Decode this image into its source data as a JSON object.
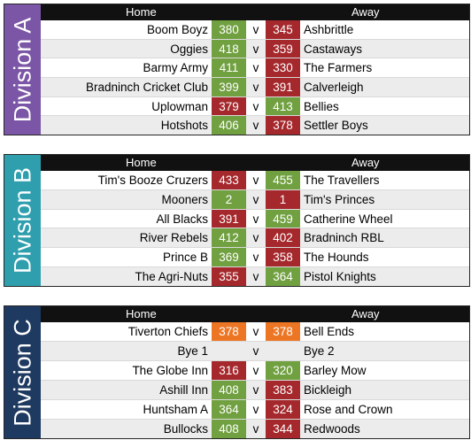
{
  "divisions": [
    {
      "label": "Division A",
      "header_home": "Home",
      "header_away": "Away",
      "accent": "#7c56a6",
      "matches": [
        {
          "home": "Boom Boyz",
          "home_score": "380",
          "vs": "v",
          "away_score": "345",
          "away": "Ashbrittle",
          "home_result": "win",
          "away_result": "lose"
        },
        {
          "home": "Oggies",
          "home_score": "418",
          "vs": "v",
          "away_score": "359",
          "away": "Castaways",
          "home_result": "win",
          "away_result": "lose"
        },
        {
          "home": "Barmy Army",
          "home_score": "411",
          "vs": "v",
          "away_score": "330",
          "away": "The Farmers",
          "home_result": "win",
          "away_result": "lose"
        },
        {
          "home": "Bradninch Cricket Club",
          "home_score": "399",
          "vs": "v",
          "away_score": "391",
          "away": "Calverleigh",
          "home_result": "win",
          "away_result": "lose"
        },
        {
          "home": "Uplowman",
          "home_score": "379",
          "vs": "v",
          "away_score": "413",
          "away": "Bellies",
          "home_result": "lose",
          "away_result": "win"
        },
        {
          "home": "Hotshots",
          "home_score": "406",
          "vs": "v",
          "away_score": "378",
          "away": "Settler Boys",
          "home_result": "win",
          "away_result": "lose"
        }
      ]
    },
    {
      "label": "Division B",
      "header_home": "Home",
      "header_away": "Away",
      "accent": "#2f9fae",
      "matches": [
        {
          "home": "Tim's Booze Cruzers",
          "home_score": "433",
          "vs": "v",
          "away_score": "455",
          "away": "The Travellers",
          "home_result": "lose",
          "away_result": "win"
        },
        {
          "home": "Mooners",
          "home_score": "2",
          "vs": "v",
          "away_score": "1",
          "away": "Tim's Princes",
          "home_result": "win",
          "away_result": "lose"
        },
        {
          "home": "All Blacks",
          "home_score": "391",
          "vs": "v",
          "away_score": "459",
          "away": "Catherine Wheel",
          "home_result": "lose",
          "away_result": "win"
        },
        {
          "home": "River Rebels",
          "home_score": "412",
          "vs": "v",
          "away_score": "402",
          "away": "Bradninch RBL",
          "home_result": "win",
          "away_result": "lose"
        },
        {
          "home": "Prince B",
          "home_score": "369",
          "vs": "v",
          "away_score": "358",
          "away": "The Hounds",
          "home_result": "win",
          "away_result": "lose"
        },
        {
          "home": "The Agri-Nuts",
          "home_score": "355",
          "vs": "v",
          "away_score": "364",
          "away": "Pistol Knights",
          "home_result": "lose",
          "away_result": "win"
        }
      ]
    },
    {
      "label": "Division C",
      "header_home": "Home",
      "header_away": "Away",
      "accent": "#1f3a60",
      "matches": [
        {
          "home": "Tiverton Chiefs",
          "home_score": "378",
          "vs": "v",
          "away_score": "378",
          "away": "Bell Ends",
          "home_result": "draw",
          "away_result": "draw"
        },
        {
          "home": "Bye 1",
          "home_score": "",
          "vs": "v",
          "away_score": "",
          "away": "Bye 2",
          "home_result": "none",
          "away_result": "none"
        },
        {
          "home": "The Globe Inn",
          "home_score": "316",
          "vs": "v",
          "away_score": "320",
          "away": "Barley Mow",
          "home_result": "lose",
          "away_result": "win"
        },
        {
          "home": "Ashill Inn",
          "home_score": "408",
          "vs": "v",
          "away_score": "383",
          "away": "Bickleigh",
          "home_result": "win",
          "away_result": "lose"
        },
        {
          "home": "Huntsham A",
          "home_score": "364",
          "vs": "v",
          "away_score": "324",
          "away": "Rose and Crown",
          "home_result": "win",
          "away_result": "lose"
        },
        {
          "home": "Bullocks",
          "home_score": "408",
          "vs": "v",
          "away_score": "344",
          "away": "Redwoods",
          "home_result": "win",
          "away_result": "lose"
        }
      ]
    }
  ],
  "result_colors": {
    "win": "#70a040",
    "lose": "#a5282c",
    "draw": "#ed7625"
  }
}
